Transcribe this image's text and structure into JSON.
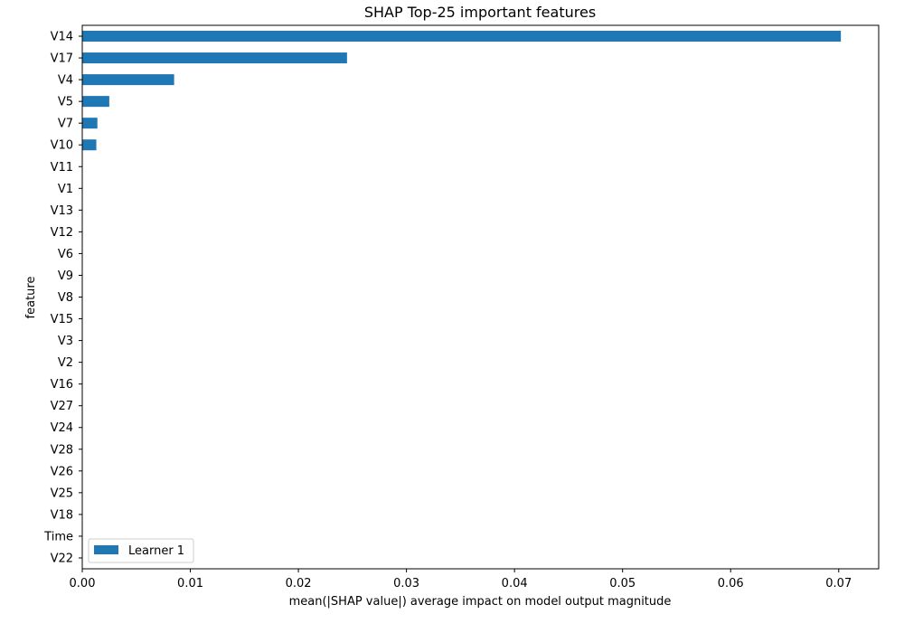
{
  "chart_data": {
    "type": "bar",
    "orientation": "horizontal",
    "title": "SHAP Top-25 important features",
    "xlabel": "mean(|SHAP value|) average impact on model output magnitude",
    "ylabel": "feature",
    "xlim": [
      0,
      0.0737
    ],
    "xticks": [
      0.0,
      0.01,
      0.02,
      0.03,
      0.04,
      0.05,
      0.06,
      0.07
    ],
    "xtick_labels": [
      "0.00",
      "0.01",
      "0.02",
      "0.03",
      "0.04",
      "0.05",
      "0.06",
      "0.07"
    ],
    "grid": false,
    "legend_position": "bottom-left",
    "categories": [
      "V14",
      "V17",
      "V4",
      "V5",
      "V7",
      "V10",
      "V11",
      "V1",
      "V13",
      "V12",
      "V6",
      "V9",
      "V8",
      "V15",
      "V3",
      "V2",
      "V16",
      "V27",
      "V24",
      "V28",
      "V26",
      "V25",
      "V18",
      "Time",
      "V22"
    ],
    "series": [
      {
        "name": "Learner 1",
        "color": "#1f77b4",
        "values": [
          0.0702,
          0.0245,
          0.0085,
          0.0025,
          0.0014,
          0.0013,
          0,
          0,
          0,
          0,
          0,
          0,
          0,
          0,
          0,
          0,
          0,
          0,
          0,
          0,
          0,
          0,
          0,
          0,
          0
        ]
      }
    ]
  }
}
